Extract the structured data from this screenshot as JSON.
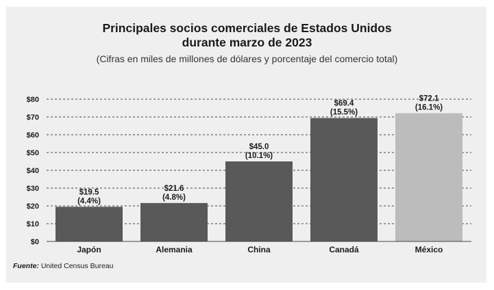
{
  "chart_data": {
    "type": "bar",
    "title_line1": "Principales socios comerciales de Estados Unidos",
    "title_line2": "durante marzo de 2023",
    "subtitle": "(Cifras en miles de millones de dólares y porcentaje del comercio total)",
    "categories": [
      "Japón",
      "Alemania",
      "China",
      "Canadá",
      "México"
    ],
    "values": [
      19.5,
      21.6,
      45.0,
      69.4,
      72.1
    ],
    "value_labels": [
      "$19.5",
      "$21.6",
      "$45.0",
      "$69.4",
      "$72.1"
    ],
    "percent_labels": [
      "(4.4%)",
      "(4.8%)",
      "(10.1%)",
      "(15.5%)",
      "(16.1%)"
    ],
    "ylim": [
      0,
      80
    ],
    "yticks": [
      0,
      10,
      20,
      30,
      40,
      50,
      60,
      70,
      80
    ],
    "ytick_labels": [
      "$0",
      "$10",
      "$20",
      "$30",
      "$40",
      "$50",
      "$60",
      "$70",
      "$80"
    ],
    "grid": true,
    "bar_colors": [
      "#595959",
      "#595959",
      "#595959",
      "#595959",
      "#bcbcbc"
    ],
    "background_color": "#efefef"
  },
  "source": {
    "label": "Fuente:",
    "text": " United Census Bureau"
  }
}
